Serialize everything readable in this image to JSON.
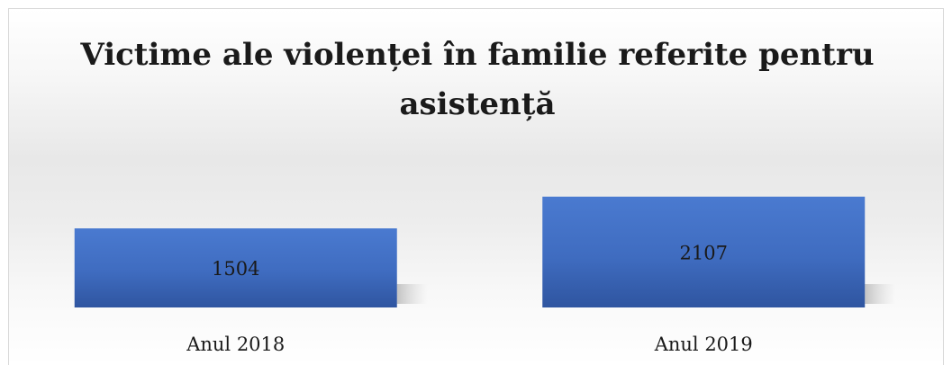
{
  "chart_data": {
    "type": "bar",
    "title": "Victime ale violenței în familie referite pentru asistență",
    "categories": [
      "Anul 2018",
      "Anul 2019"
    ],
    "values": [
      1504,
      2107
    ],
    "xlabel": "",
    "ylabel": "",
    "ylim": [
      0,
      2200
    ],
    "grid": false,
    "legend": "none",
    "bar_color": "#4472c4",
    "data_labels": true
  }
}
